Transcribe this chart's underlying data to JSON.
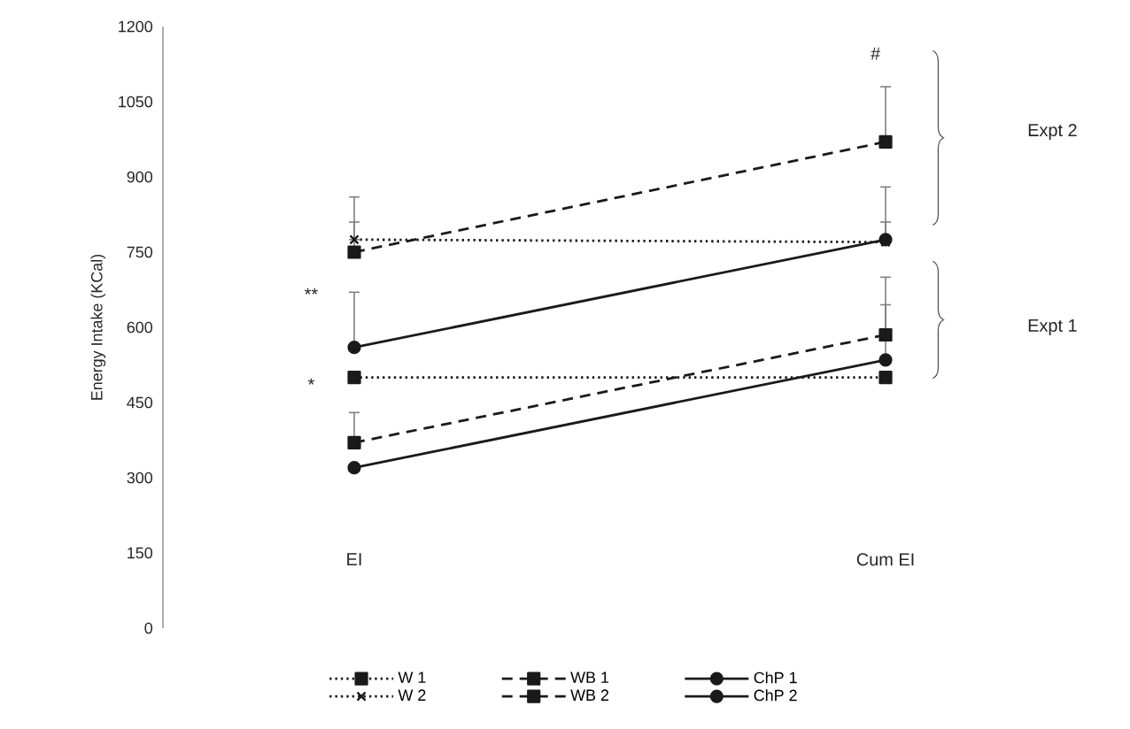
{
  "chart_data": {
    "type": "line",
    "ylabel": "Energy Intake (KCal)",
    "categories": [
      "EI",
      "Cum EI"
    ],
    "ylim": [
      0,
      1200
    ],
    "yticks": [
      0,
      150,
      300,
      450,
      600,
      750,
      900,
      1050,
      1200
    ],
    "grid": false,
    "legend": "bottom",
    "series": [
      {
        "name": "W 1",
        "color": "#1a1a1a",
        "values": [
          500,
          500
        ],
        "line_style": "dotted",
        "marker": "square"
      },
      {
        "name": "WB 1",
        "color": "#1a1a1a",
        "values": [
          370,
          585
        ],
        "line_style": "dashed",
        "marker": "square",
        "errors": [
          [
            370,
            430
          ],
          [
            585,
            700
          ]
        ]
      },
      {
        "name": "ChP 1",
        "color": "#1a1a1a",
        "values": [
          320,
          535
        ],
        "line_style": "solid",
        "marker": "circle",
        "errors": [
          null,
          [
            535,
            645
          ]
        ]
      },
      {
        "name": "W 2",
        "color": "#1a1a1a",
        "values": [
          775,
          770
        ],
        "line_style": "dotted",
        "marker": "cross",
        "errors": [
          [
            775,
            860
          ],
          [
            770,
            810
          ]
        ]
      },
      {
        "name": "WB 2",
        "color": "#1a1a1a",
        "values": [
          750,
          970
        ],
        "line_style": "dashed",
        "marker": "square",
        "errors": [
          [
            750,
            810
          ],
          [
            970,
            1080
          ]
        ]
      },
      {
        "name": "ChP 2",
        "color": "#1a1a1a",
        "values": [
          560,
          775
        ],
        "line_style": "solid",
        "marker": "circle",
        "errors": [
          [
            560,
            670
          ],
          [
            775,
            880
          ]
        ]
      }
    ],
    "annotations": [
      "**",
      "*",
      "#",
      "Expt 2",
      "Expt 1"
    ]
  }
}
